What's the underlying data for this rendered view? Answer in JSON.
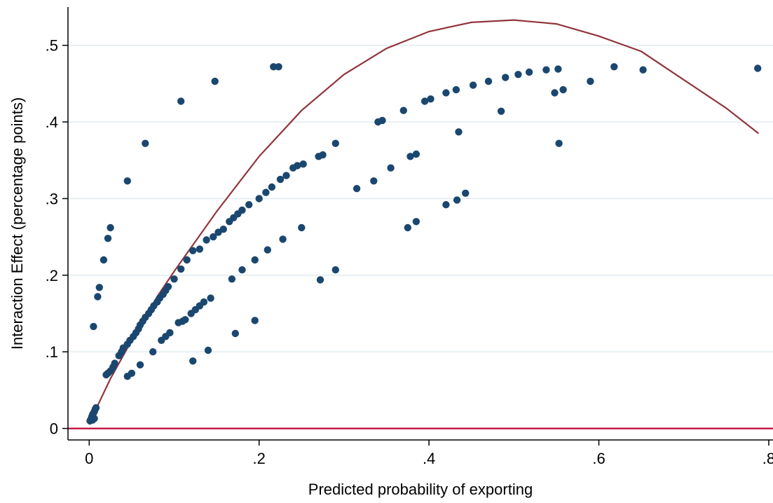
{
  "chart_data": {
    "type": "scatter",
    "title": "",
    "xlabel": "Predicted probability of exporting",
    "ylabel": "Interaction Effect (percentage points)",
    "xlim": [
      -0.025,
      0.805
    ],
    "ylim": [
      -0.015,
      0.55
    ],
    "x_ticks": [
      0,
      0.2,
      0.4,
      0.6,
      0.8
    ],
    "x_tick_labels": [
      "0",
      ".2",
      ".4",
      ".6",
      ".8"
    ],
    "y_ticks": [
      0,
      0.1,
      0.2,
      0.3,
      0.4,
      0.5
    ],
    "y_tick_labels": [
      "0",
      ".1",
      ".2",
      ".3",
      ".4",
      ".5"
    ],
    "grid": true,
    "legend": "none",
    "colors": {
      "points": "#1a476f",
      "curve": "#90353b",
      "zero_line": "#c10534",
      "grid": "#e1ebef"
    },
    "series": [
      {
        "kind": "scatter",
        "points": [
          [
            0.001,
            0.01
          ],
          [
            0.002,
            0.012
          ],
          [
            0.003,
            0.015
          ],
          [
            0.004,
            0.018
          ],
          [
            0.005,
            0.02
          ],
          [
            0.006,
            0.022
          ],
          [
            0.007,
            0.025
          ],
          [
            0.008,
            0.027
          ],
          [
            0.004,
            0.011
          ],
          [
            0.006,
            0.013
          ],
          [
            0.02,
            0.07
          ],
          [
            0.022,
            0.072
          ],
          [
            0.025,
            0.075
          ],
          [
            0.028,
            0.08
          ],
          [
            0.03,
            0.085
          ],
          [
            0.035,
            0.095
          ],
          [
            0.038,
            0.1
          ],
          [
            0.04,
            0.105
          ],
          [
            0.045,
            0.11
          ],
          [
            0.048,
            0.115
          ],
          [
            0.052,
            0.12
          ],
          [
            0.055,
            0.125
          ],
          [
            0.058,
            0.13
          ],
          [
            0.06,
            0.135
          ],
          [
            0.063,
            0.14
          ],
          [
            0.066,
            0.145
          ],
          [
            0.07,
            0.15
          ],
          [
            0.073,
            0.155
          ],
          [
            0.076,
            0.16
          ],
          [
            0.08,
            0.165
          ],
          [
            0.083,
            0.17
          ],
          [
            0.087,
            0.175
          ],
          [
            0.09,
            0.18
          ],
          [
            0.093,
            0.185
          ],
          [
            0.1,
            0.195
          ],
          [
            0.108,
            0.208
          ],
          [
            0.115,
            0.22
          ],
          [
            0.122,
            0.232
          ],
          [
            0.13,
            0.234
          ],
          [
            0.138,
            0.246
          ],
          [
            0.146,
            0.25
          ],
          [
            0.152,
            0.256
          ],
          [
            0.158,
            0.26
          ],
          [
            0.165,
            0.27
          ],
          [
            0.17,
            0.275
          ],
          [
            0.175,
            0.28
          ],
          [
            0.18,
            0.285
          ],
          [
            0.188,
            0.292
          ],
          [
            0.2,
            0.3
          ],
          [
            0.208,
            0.308
          ],
          [
            0.215,
            0.315
          ],
          [
            0.225,
            0.325
          ],
          [
            0.232,
            0.33
          ],
          [
            0.24,
            0.34
          ],
          [
            0.245,
            0.343
          ],
          [
            0.252,
            0.345
          ],
          [
            0.27,
            0.355
          ],
          [
            0.275,
            0.357
          ],
          [
            0.29,
            0.372
          ],
          [
            0.34,
            0.4
          ],
          [
            0.345,
            0.402
          ],
          [
            0.37,
            0.415
          ],
          [
            0.395,
            0.427
          ],
          [
            0.402,
            0.43
          ],
          [
            0.42,
            0.438
          ],
          [
            0.432,
            0.442
          ],
          [
            0.452,
            0.448
          ],
          [
            0.47,
            0.453
          ],
          [
            0.49,
            0.458
          ],
          [
            0.505,
            0.462
          ],
          [
            0.518,
            0.465
          ],
          [
            0.538,
            0.468
          ],
          [
            0.552,
            0.469
          ],
          [
            0.548,
            0.438
          ],
          [
            0.558,
            0.442
          ],
          [
            0.59,
            0.453
          ],
          [
            0.618,
            0.472
          ],
          [
            0.652,
            0.468
          ],
          [
            0.787,
            0.47
          ],
          [
            0.045,
            0.068
          ],
          [
            0.05,
            0.072
          ],
          [
            0.06,
            0.083
          ],
          [
            0.075,
            0.1
          ],
          [
            0.085,
            0.115
          ],
          [
            0.09,
            0.12
          ],
          [
            0.095,
            0.125
          ],
          [
            0.105,
            0.138
          ],
          [
            0.11,
            0.14
          ],
          [
            0.113,
            0.142
          ],
          [
            0.12,
            0.15
          ],
          [
            0.125,
            0.155
          ],
          [
            0.13,
            0.16
          ],
          [
            0.135,
            0.165
          ],
          [
            0.143,
            0.17
          ],
          [
            0.168,
            0.195
          ],
          [
            0.18,
            0.207
          ],
          [
            0.195,
            0.22
          ],
          [
            0.21,
            0.233
          ],
          [
            0.228,
            0.247
          ],
          [
            0.25,
            0.262
          ],
          [
            0.122,
            0.088
          ],
          [
            0.14,
            0.102
          ],
          [
            0.172,
            0.124
          ],
          [
            0.195,
            0.141
          ],
          [
            0.272,
            0.194
          ],
          [
            0.29,
            0.207
          ],
          [
            0.315,
            0.313
          ],
          [
            0.335,
            0.323
          ],
          [
            0.355,
            0.34
          ],
          [
            0.375,
            0.262
          ],
          [
            0.385,
            0.27
          ],
          [
            0.378,
            0.355
          ],
          [
            0.385,
            0.358
          ],
          [
            0.42,
            0.292
          ],
          [
            0.433,
            0.298
          ],
          [
            0.443,
            0.307
          ],
          [
            0.435,
            0.387
          ],
          [
            0.485,
            0.414
          ],
          [
            0.553,
            0.372
          ],
          [
            0.005,
            0.133
          ],
          [
            0.01,
            0.172
          ],
          [
            0.012,
            0.184
          ],
          [
            0.017,
            0.22
          ],
          [
            0.022,
            0.248
          ],
          [
            0.025,
            0.262
          ],
          [
            0.045,
            0.323
          ],
          [
            0.066,
            0.372
          ],
          [
            0.108,
            0.427
          ],
          [
            0.148,
            0.453
          ],
          [
            0.217,
            0.472
          ],
          [
            0.223,
            0.472
          ]
        ]
      },
      {
        "kind": "line",
        "points": [
          [
            0.0,
            0.005
          ],
          [
            0.01,
            0.03
          ],
          [
            0.025,
            0.065
          ],
          [
            0.05,
            0.115
          ],
          [
            0.08,
            0.172
          ],
          [
            0.1,
            0.205
          ],
          [
            0.15,
            0.283
          ],
          [
            0.2,
            0.355
          ],
          [
            0.25,
            0.415
          ],
          [
            0.3,
            0.462
          ],
          [
            0.35,
            0.496
          ],
          [
            0.4,
            0.518
          ],
          [
            0.45,
            0.53
          ],
          [
            0.5,
            0.533
          ],
          [
            0.55,
            0.528
          ],
          [
            0.6,
            0.512
          ],
          [
            0.65,
            0.492
          ],
          [
            0.7,
            0.455
          ],
          [
            0.75,
            0.418
          ],
          [
            0.788,
            0.385
          ]
        ]
      },
      {
        "kind": "hline",
        "y": 0
      }
    ]
  }
}
